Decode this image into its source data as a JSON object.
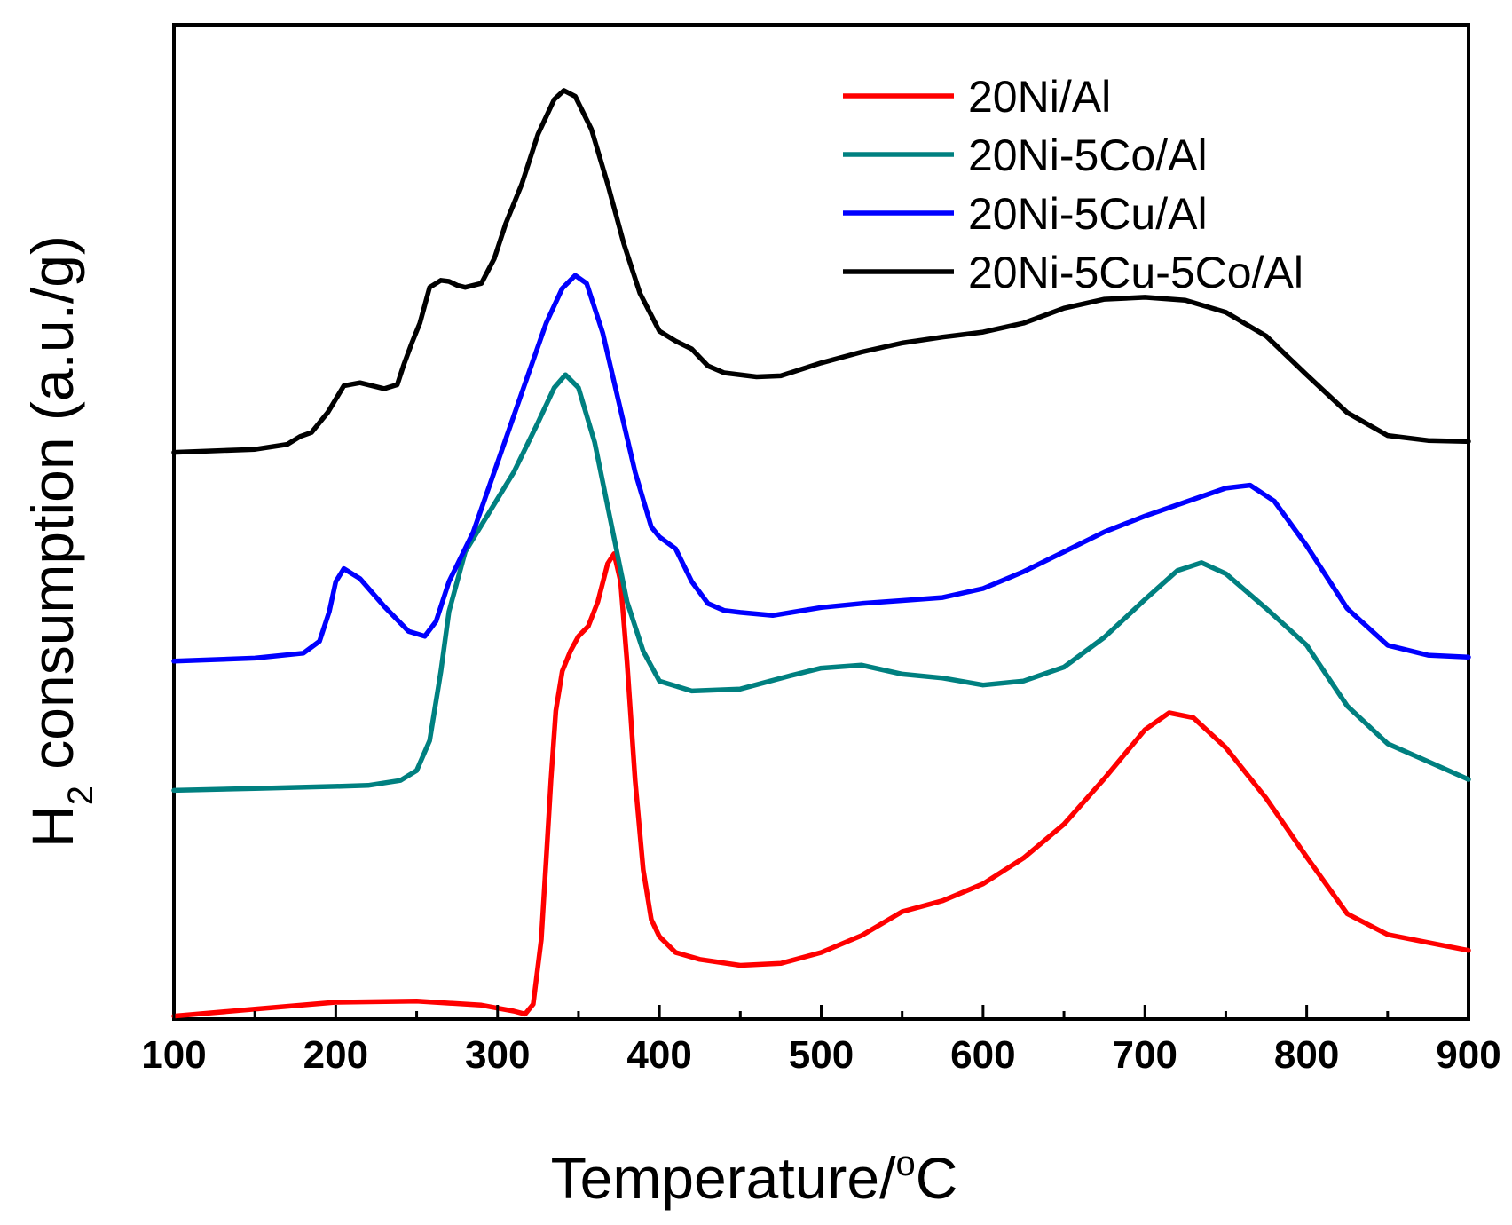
{
  "chart_data": {
    "type": "line",
    "xlabel": "Temperature/",
    "xlabel_superscript": "o",
    "xlabel_unit": "C",
    "ylabel_prefix": "H",
    "ylabel_subscript": "2",
    "ylabel_suffix": " consumption (a.u./g)",
    "xlim": [
      100,
      900
    ],
    "ylim": [
      0,
      100
    ],
    "x_ticks": [
      "100",
      "200",
      "300",
      "400",
      "500",
      "600",
      "700",
      "800",
      "900"
    ],
    "legend_position": "top-right",
    "series": [
      {
        "name": "20Ni/Al",
        "color": "#ff0000",
        "points": [
          [
            100,
            0.3
          ],
          [
            150,
            1.0
          ],
          [
            200,
            1.7
          ],
          [
            250,
            1.8
          ],
          [
            290,
            1.4
          ],
          [
            310,
            0.8
          ],
          [
            317,
            0.5
          ],
          [
            322,
            1.5
          ],
          [
            327,
            8
          ],
          [
            330,
            16
          ],
          [
            333,
            24
          ],
          [
            336,
            31
          ],
          [
            340,
            35
          ],
          [
            345,
            37
          ],
          [
            350,
            38.5
          ],
          [
            356,
            39.5
          ],
          [
            362,
            42
          ],
          [
            368,
            45.8
          ],
          [
            372,
            46.8
          ],
          [
            376,
            44
          ],
          [
            380,
            36
          ],
          [
            385,
            24
          ],
          [
            390,
            15
          ],
          [
            395,
            10
          ],
          [
            400,
            8.3
          ],
          [
            410,
            6.7
          ],
          [
            425,
            6.0
          ],
          [
            450,
            5.4
          ],
          [
            475,
            5.6
          ],
          [
            500,
            6.7
          ],
          [
            525,
            8.4
          ],
          [
            550,
            10.8
          ],
          [
            575,
            11.9
          ],
          [
            600,
            13.6
          ],
          [
            625,
            16.2
          ],
          [
            650,
            19.6
          ],
          [
            675,
            24.2
          ],
          [
            700,
            29.1
          ],
          [
            715,
            30.8
          ],
          [
            730,
            30.3
          ],
          [
            750,
            27.3
          ],
          [
            775,
            22.2
          ],
          [
            800,
            16.3
          ],
          [
            825,
            10.6
          ],
          [
            850,
            8.5
          ],
          [
            875,
            7.7
          ],
          [
            900,
            6.9
          ]
        ]
      },
      {
        "name": "20Ni-5Co/Al",
        "color": "#008080",
        "points": [
          [
            100,
            23.0
          ],
          [
            150,
            23.2
          ],
          [
            200,
            23.4
          ],
          [
            220,
            23.5
          ],
          [
            240,
            24.0
          ],
          [
            250,
            25.0
          ],
          [
            258,
            28
          ],
          [
            265,
            35
          ],
          [
            270,
            41
          ],
          [
            280,
            47
          ],
          [
            295,
            51
          ],
          [
            310,
            55
          ],
          [
            325,
            60
          ],
          [
            335,
            63.5
          ],
          [
            342,
            64.8
          ],
          [
            350,
            63.5
          ],
          [
            360,
            58
          ],
          [
            370,
            50
          ],
          [
            380,
            42
          ],
          [
            390,
            37
          ],
          [
            400,
            34
          ],
          [
            420,
            33.0
          ],
          [
            450,
            33.2
          ],
          [
            480,
            34.5
          ],
          [
            500,
            35.3
          ],
          [
            525,
            35.6
          ],
          [
            550,
            34.7
          ],
          [
            575,
            34.3
          ],
          [
            600,
            33.6
          ],
          [
            625,
            34.0
          ],
          [
            650,
            35.4
          ],
          [
            675,
            38.4
          ],
          [
            700,
            42.2
          ],
          [
            720,
            45.1
          ],
          [
            735,
            45.9
          ],
          [
            750,
            44.8
          ],
          [
            775,
            41.3
          ],
          [
            800,
            37.6
          ],
          [
            825,
            31.5
          ],
          [
            850,
            27.7
          ],
          [
            875,
            25.9
          ],
          [
            900,
            24.1
          ]
        ]
      },
      {
        "name": "20Ni-5Cu/Al",
        "color": "#0000ff",
        "points": [
          [
            100,
            36.0
          ],
          [
            150,
            36.3
          ],
          [
            180,
            36.8
          ],
          [
            190,
            38
          ],
          [
            196,
            41
          ],
          [
            200,
            44
          ],
          [
            205,
            45.3
          ],
          [
            215,
            44.3
          ],
          [
            230,
            41.5
          ],
          [
            245,
            39.0
          ],
          [
            255,
            38.5
          ],
          [
            262,
            40
          ],
          [
            270,
            44
          ],
          [
            285,
            49
          ],
          [
            300,
            56
          ],
          [
            315,
            63
          ],
          [
            330,
            70
          ],
          [
            340,
            73.5
          ],
          [
            348,
            74.8
          ],
          [
            355,
            74
          ],
          [
            365,
            69
          ],
          [
            375,
            62
          ],
          [
            385,
            55
          ],
          [
            395,
            49.5
          ],
          [
            400,
            48.5
          ],
          [
            410,
            47.3
          ],
          [
            420,
            44
          ],
          [
            430,
            41.8
          ],
          [
            440,
            41.1
          ],
          [
            450,
            40.9
          ],
          [
            470,
            40.6
          ],
          [
            500,
            41.4
          ],
          [
            525,
            41.8
          ],
          [
            550,
            42.1
          ],
          [
            575,
            42.4
          ],
          [
            600,
            43.3
          ],
          [
            625,
            45.0
          ],
          [
            650,
            47.0
          ],
          [
            675,
            49.0
          ],
          [
            700,
            50.6
          ],
          [
            725,
            52.0
          ],
          [
            750,
            53.4
          ],
          [
            765,
            53.7
          ],
          [
            780,
            52.1
          ],
          [
            800,
            47.6
          ],
          [
            825,
            41.3
          ],
          [
            850,
            37.6
          ],
          [
            875,
            36.6
          ],
          [
            900,
            36.4
          ]
        ]
      },
      {
        "name": "20Ni-5Cu-5Co/Al",
        "color": "#000000",
        "points": [
          [
            100,
            57.0
          ],
          [
            150,
            57.3
          ],
          [
            170,
            57.8
          ],
          [
            178,
            58.6
          ],
          [
            185,
            59.0
          ],
          [
            195,
            61.0
          ],
          [
            205,
            63.7
          ],
          [
            215,
            64.0
          ],
          [
            230,
            63.4
          ],
          [
            238,
            63.8
          ],
          [
            242,
            65.8
          ],
          [
            247,
            68
          ],
          [
            252,
            70
          ],
          [
            258,
            73.6
          ],
          [
            265,
            74.3
          ],
          [
            270,
            74.2
          ],
          [
            275,
            73.8
          ],
          [
            280,
            73.6
          ],
          [
            290,
            74.0
          ],
          [
            298,
            76.5
          ],
          [
            305,
            80
          ],
          [
            315,
            84
          ],
          [
            325,
            89
          ],
          [
            335,
            92.5
          ],
          [
            341,
            93.4
          ],
          [
            348,
            92.8
          ],
          [
            358,
            89.5
          ],
          [
            368,
            84
          ],
          [
            378,
            78
          ],
          [
            388,
            73
          ],
          [
            400,
            69.2
          ],
          [
            410,
            68.2
          ],
          [
            420,
            67.4
          ],
          [
            430,
            65.7
          ],
          [
            440,
            65.0
          ],
          [
            460,
            64.6
          ],
          [
            475,
            64.7
          ],
          [
            500,
            66.0
          ],
          [
            525,
            67.1
          ],
          [
            550,
            68.0
          ],
          [
            575,
            68.6
          ],
          [
            600,
            69.1
          ],
          [
            625,
            70.0
          ],
          [
            650,
            71.5
          ],
          [
            675,
            72.4
          ],
          [
            700,
            72.6
          ],
          [
            725,
            72.3
          ],
          [
            750,
            71.1
          ],
          [
            775,
            68.7
          ],
          [
            800,
            64.8
          ],
          [
            825,
            61.0
          ],
          [
            850,
            58.7
          ],
          [
            875,
            58.2
          ],
          [
            900,
            58.1
          ]
        ]
      }
    ]
  }
}
